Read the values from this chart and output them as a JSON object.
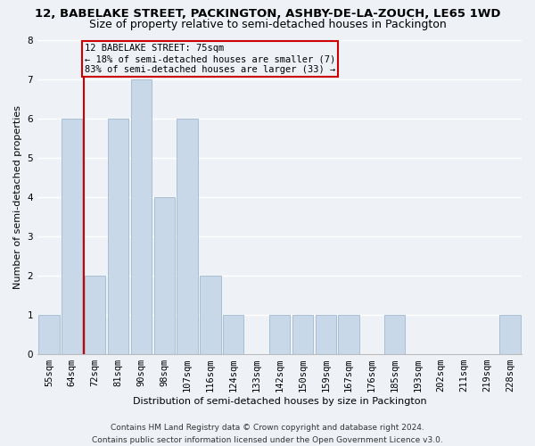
{
  "title": "12, BABELAKE STREET, PACKINGTON, ASHBY-DE-LA-ZOUCH, LE65 1WD",
  "subtitle": "Size of property relative to semi-detached houses in Packington",
  "xlabel": "Distribution of semi-detached houses by size in Packington",
  "ylabel": "Number of semi-detached properties",
  "categories": [
    "55sqm",
    "64sqm",
    "72sqm",
    "81sqm",
    "90sqm",
    "98sqm",
    "107sqm",
    "116sqm",
    "124sqm",
    "133sqm",
    "142sqm",
    "150sqm",
    "159sqm",
    "167sqm",
    "176sqm",
    "185sqm",
    "193sqm",
    "202sqm",
    "211sqm",
    "219sqm",
    "228sqm"
  ],
  "values": [
    1,
    6,
    2,
    6,
    7,
    4,
    6,
    2,
    1,
    0,
    1,
    1,
    1,
    1,
    0,
    1,
    0,
    0,
    0,
    0,
    1
  ],
  "bar_color": "#c8d8e8",
  "bar_edgecolor": "#a0b8d0",
  "subject_line_color": "#cc0000",
  "annotation_text_line1": "12 BABELAKE STREET: 75sqm",
  "annotation_text_line2": "← 18% of semi-detached houses are smaller (7)",
  "annotation_text_line3": "83% of semi-detached houses are larger (33) →",
  "annotation_box_color": "#cc0000",
  "ylim": [
    0,
    8
  ],
  "yticks": [
    0,
    1,
    2,
    3,
    4,
    5,
    6,
    7,
    8
  ],
  "footer_line1": "Contains HM Land Registry data © Crown copyright and database right 2024.",
  "footer_line2": "Contains public sector information licensed under the Open Government Licence v3.0.",
  "background_color": "#eef2f7",
  "grid_color": "#ffffff",
  "title_fontsize": 9.5,
  "subtitle_fontsize": 9,
  "axis_label_fontsize": 8,
  "tick_fontsize": 7.5,
  "annotation_fontsize": 7.5,
  "footer_fontsize": 6.5
}
